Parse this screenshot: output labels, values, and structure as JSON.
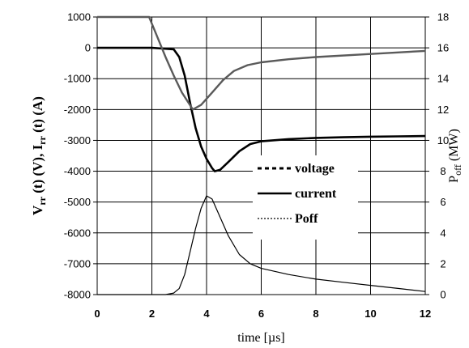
{
  "chart_data": {
    "type": "line",
    "xlabel": "time [µs]",
    "ylabel_left": "V_rr (t) (V), I_rr (t) (A)",
    "ylabel_right": "P_off (MW)",
    "xlim": [
      0,
      12
    ],
    "ylim_left": [
      -8000,
      1000
    ],
    "ylim_right": [
      0,
      18
    ],
    "x_ticks": [
      0,
      2,
      4,
      6,
      8,
      10,
      12
    ],
    "y_left_ticks": [
      1000,
      0,
      -1000,
      -2000,
      -3000,
      -4000,
      -5000,
      -6000,
      -7000,
      -8000
    ],
    "y_right_ticks": [
      0,
      2,
      4,
      6,
      8,
      10,
      12,
      14,
      16,
      18
    ],
    "grid": true,
    "legend_position": "center-right",
    "series": [
      {
        "name": "voltage",
        "axis": "left",
        "x": [
          0,
          2.0,
          2.8,
          3.0,
          3.2,
          3.4,
          3.6,
          3.8,
          4.0,
          4.2,
          4.3,
          4.5,
          4.8,
          5.2,
          5.6,
          6.0,
          7.0,
          8.0,
          9.0,
          10.0,
          11.0,
          12.0
        ],
        "y": [
          0,
          0,
          -50,
          -300,
          -900,
          -1800,
          -2600,
          -3200,
          -3600,
          -3900,
          -4000,
          -3950,
          -3700,
          -3350,
          -3120,
          -3030,
          -2960,
          -2920,
          -2900,
          -2880,
          -2870,
          -2860
        ]
      },
      {
        "name": "current",
        "axis": "left",
        "x": [
          0,
          1.9,
          2.2,
          2.5,
          2.8,
          3.1,
          3.5,
          3.8,
          4.2,
          4.6,
          5.0,
          5.5,
          6.0,
          7.0,
          8.0,
          10.0,
          12.0
        ],
        "y": [
          1000,
          1000,
          350,
          -300,
          -900,
          -1450,
          -2000,
          -1850,
          -1450,
          -1050,
          -750,
          -560,
          -470,
          -370,
          -300,
          -200,
          -100
        ]
      },
      {
        "name": "Poff",
        "axis": "right",
        "x": [
          0,
          2.5,
          2.8,
          3.0,
          3.2,
          3.4,
          3.6,
          3.8,
          4.0,
          4.2,
          4.5,
          4.8,
          5.2,
          5.6,
          6.0,
          7.0,
          8.0,
          9.0,
          10.0,
          11.0,
          12.0
        ],
        "y": [
          0,
          0,
          0.1,
          0.4,
          1.3,
          2.8,
          4.3,
          5.6,
          6.4,
          6.2,
          5.0,
          3.8,
          2.6,
          2.0,
          1.7,
          1.3,
          1.0,
          0.8,
          0.6,
          0.4,
          0.2
        ]
      }
    ]
  }
}
